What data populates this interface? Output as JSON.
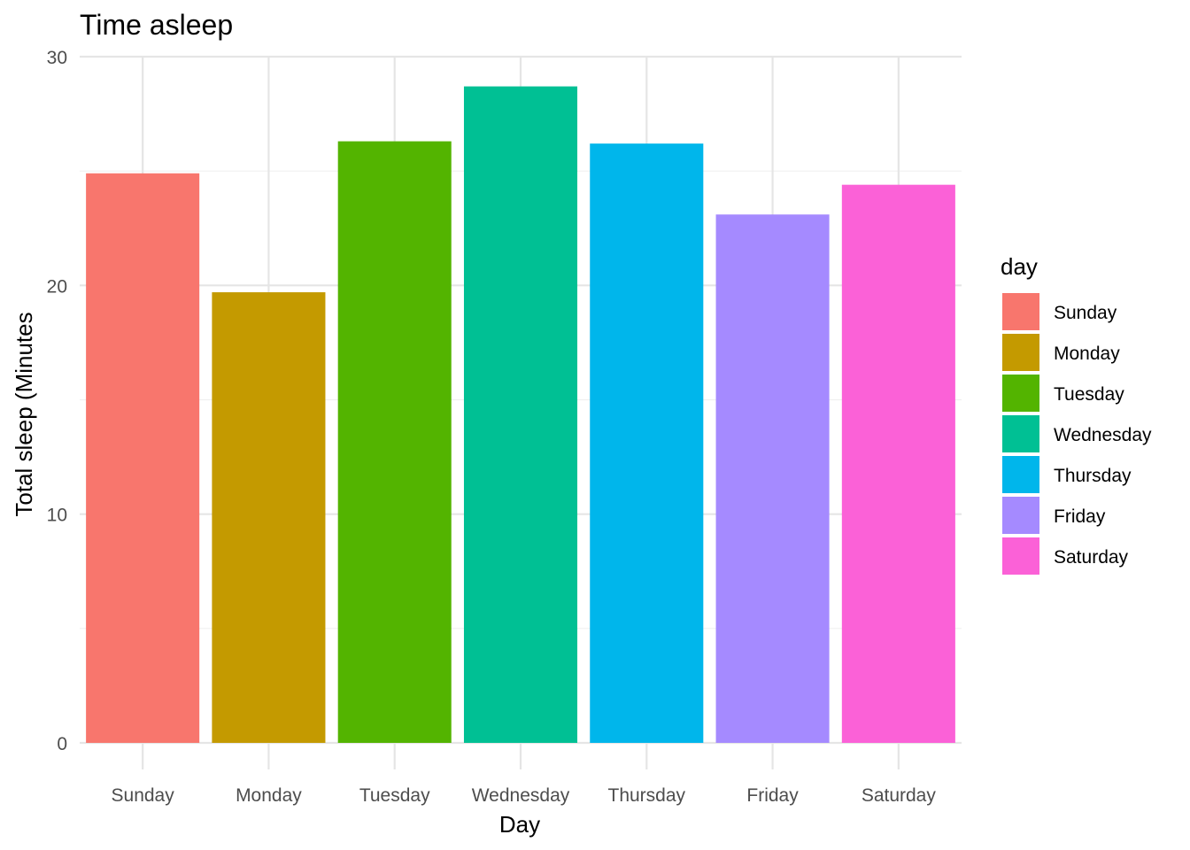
{
  "chart_data": {
    "type": "bar",
    "title": "Time asleep",
    "xlabel": "Day",
    "ylabel": "Total sleep (Minutes",
    "categories": [
      "Sunday",
      "Monday",
      "Tuesday",
      "Wednesday",
      "Thursday",
      "Friday",
      "Saturday"
    ],
    "values": [
      24.9,
      19.7,
      26.3,
      28.7,
      26.2,
      23.1,
      24.4
    ],
    "colors": [
      "#F8766D",
      "#C49A00",
      "#53B400",
      "#00C094",
      "#00B6EB",
      "#A58AFF",
      "#FB61D7"
    ],
    "ylim": [
      0,
      30
    ],
    "yticks": [
      0,
      10,
      20,
      30
    ],
    "grid": true,
    "legend": {
      "title": "day",
      "position": "right",
      "entries": [
        "Sunday",
        "Monday",
        "Tuesday",
        "Wednesday",
        "Thursday",
        "Friday",
        "Saturday"
      ]
    }
  }
}
